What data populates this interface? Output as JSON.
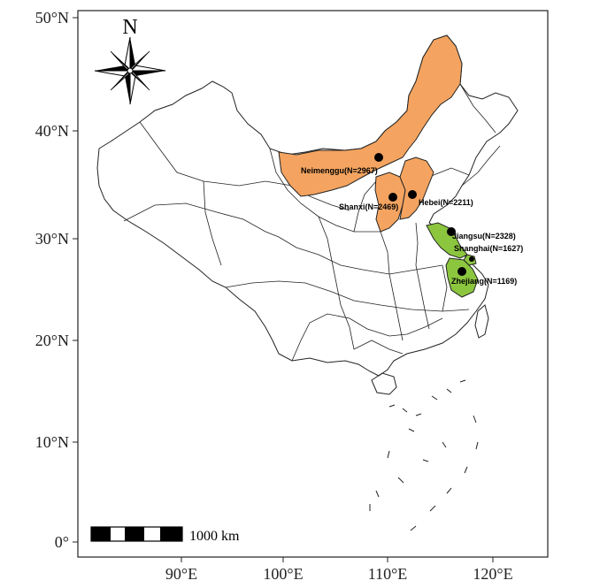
{
  "north_arrow": {
    "letter": "N",
    "icon": "compass-rose-icon"
  },
  "axis": {
    "y_ticks": [
      "50°N",
      "40°N",
      "30°N",
      "20°N",
      "10°N",
      "0°"
    ],
    "x_ticks": [
      "90°E",
      "100°E",
      "110°E",
      "120°E"
    ]
  },
  "scale_bar": {
    "label": "1000 km"
  },
  "colors": {
    "north_group": "#f4a460",
    "east_group": "#8cc63f",
    "outline": "#222222"
  },
  "regions": [
    {
      "name": "Neimenggu",
      "n": 2967,
      "label": "Neimenggu(N=2967)",
      "color": "#f4a460"
    },
    {
      "name": "Shanxi",
      "n": 2469,
      "label": "Shanxi(N=2469)",
      "color": "#f4a460"
    },
    {
      "name": "Hebei",
      "n": 2211,
      "label": "Hebei(N=2211)",
      "color": "#f4a460"
    },
    {
      "name": "Jiangsu",
      "n": 2328,
      "label": "Jiangsu(N=2328)",
      "color": "#8cc63f"
    },
    {
      "name": "Shanghai",
      "n": 1627,
      "label": "Shanghai(N=1627)",
      "color": "#8cc63f"
    },
    {
      "name": "Zhejiang",
      "n": 1169,
      "label": "Zhejiang(N=1169)",
      "color": "#8cc63f"
    }
  ]
}
